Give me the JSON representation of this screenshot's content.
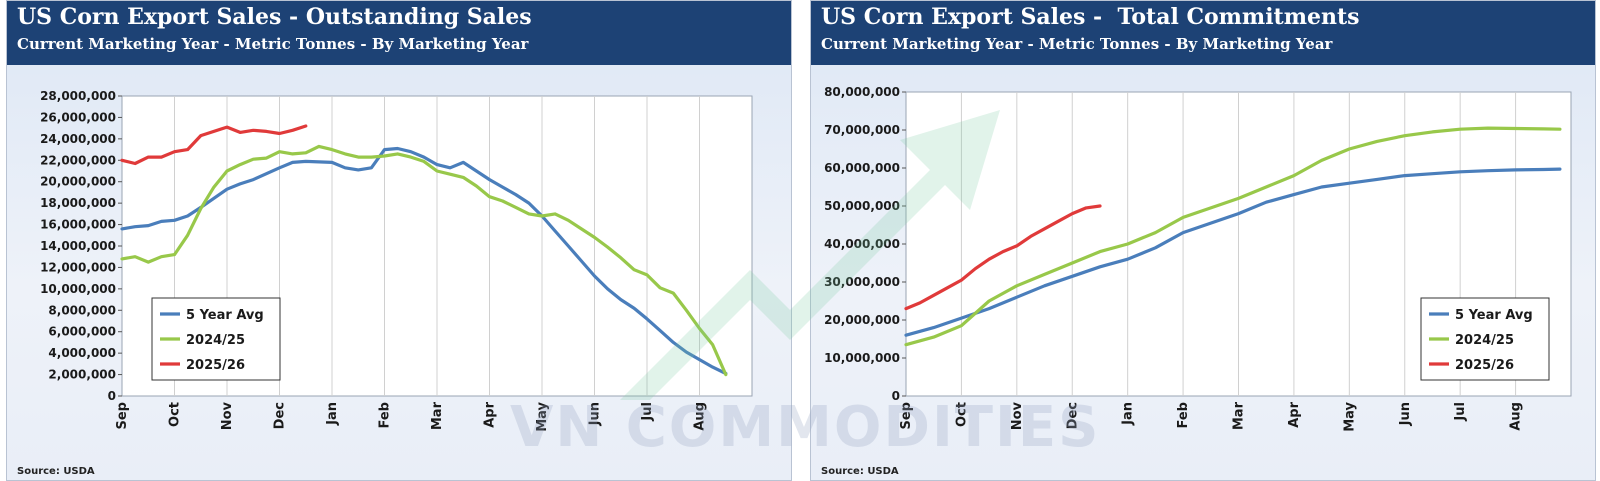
{
  "watermark": {
    "text": "VN COMMODITIES"
  },
  "colors": {
    "avg": "#4a7ebb",
    "y2425": "#98c84a",
    "y2526": "#e03a3a",
    "header": "#1d4275"
  },
  "chart_data": [
    {
      "type": "line",
      "title": "US Corn Export Sales - Outstanding Sales",
      "subtitle": "Current Marketing Year - Metric Tonnes - By Marketing Year",
      "source": "Source: USDA",
      "xlabel": "",
      "ylabel": "",
      "ylim": [
        0,
        28000000
      ],
      "yticks": [
        0,
        2000000,
        4000000,
        6000000,
        8000000,
        10000000,
        12000000,
        14000000,
        16000000,
        18000000,
        20000000,
        22000000,
        24000000,
        26000000,
        28000000
      ],
      "ytick_labels": [
        "0",
        "2,000,000",
        "4,000,000",
        "6,000,000",
        "8,000,000",
        "10,000,000",
        "12,000,000",
        "14,000,000",
        "16,000,000",
        "18,000,000",
        "20,000,000",
        "22,000,000",
        "24,000,000",
        "26,000,000",
        "28,000,000"
      ],
      "xticks": [
        "Sep",
        "Oct",
        "Nov",
        "Dec",
        "Jan",
        "Feb",
        "Mar",
        "Apr",
        "May",
        "Jun",
        "Jul",
        "Aug"
      ],
      "legend": {
        "position": "bottom-left",
        "entries": [
          "5 Year Avg",
          "2024/25",
          "2025/26"
        ]
      },
      "series": [
        {
          "name": "5 Year Avg",
          "color": "#4a7ebb",
          "x": [
            0,
            0.25,
            0.5,
            0.75,
            1,
            1.25,
            1.5,
            2,
            2.25,
            2.5,
            3,
            3.25,
            3.5,
            4,
            4.25,
            4.5,
            4.75,
            5,
            5.25,
            5.5,
            5.75,
            6,
            6.25,
            6.5,
            6.75,
            7,
            7.25,
            7.5,
            7.75,
            8,
            8.25,
            8.5,
            8.75,
            9,
            9.25,
            9.5,
            9.75,
            10,
            10.25,
            10.5,
            10.75,
            11,
            11.25,
            11.5
          ],
          "y": [
            15600000,
            15800000,
            15900000,
            16300000,
            16400000,
            16800000,
            17600000,
            19300000,
            19800000,
            20200000,
            21300000,
            21800000,
            21900000,
            21800000,
            21300000,
            21100000,
            21300000,
            23000000,
            23100000,
            22800000,
            22300000,
            21600000,
            21300000,
            21800000,
            21000000,
            20200000,
            19500000,
            18800000,
            18000000,
            16800000,
            15400000,
            14000000,
            12600000,
            11200000,
            10000000,
            9000000,
            8200000,
            7200000,
            6100000,
            5000000,
            4100000,
            3400000,
            2700000,
            2100000
          ]
        },
        {
          "name": "2024/25",
          "color": "#98c84a",
          "x": [
            0,
            0.25,
            0.5,
            0.75,
            1,
            1.25,
            1.5,
            1.75,
            2,
            2.25,
            2.5,
            2.75,
            3,
            3.25,
            3.5,
            3.75,
            4,
            4.25,
            4.5,
            4.75,
            5,
            5.25,
            5.5,
            5.75,
            6,
            6.25,
            6.5,
            6.75,
            7,
            7.25,
            7.5,
            7.75,
            8,
            8.25,
            8.5,
            8.75,
            9,
            9.25,
            9.5,
            9.75,
            10,
            10.25,
            10.5,
            10.75,
            11,
            11.25,
            11.5
          ],
          "y": [
            12800000,
            13000000,
            12500000,
            13000000,
            13200000,
            15000000,
            17500000,
            19500000,
            21000000,
            21600000,
            22100000,
            22200000,
            22800000,
            22600000,
            22700000,
            23300000,
            23000000,
            22600000,
            22300000,
            22300000,
            22400000,
            22600000,
            22300000,
            21900000,
            21000000,
            20700000,
            20400000,
            19600000,
            18600000,
            18200000,
            17600000,
            17000000,
            16800000,
            17000000,
            16400000,
            15600000,
            14800000,
            13900000,
            12900000,
            11800000,
            11300000,
            10100000,
            9600000,
            8000000,
            6300000,
            4800000,
            2000000
          ]
        },
        {
          "name": "2025/26",
          "color": "#e03a3a",
          "x": [
            0,
            0.25,
            0.5,
            0.75,
            1,
            1.25,
            1.5,
            2,
            2.25,
            2.5,
            2.75,
            3,
            3.25,
            3.5
          ],
          "y": [
            22000000,
            21700000,
            22300000,
            22300000,
            22800000,
            23000000,
            24300000,
            25100000,
            24600000,
            24800000,
            24700000,
            24500000,
            24800000,
            25200000
          ]
        }
      ]
    },
    {
      "type": "line",
      "title": "US Corn Export Sales -  Total Commitments",
      "subtitle": "Current Marketing Year - Metric Tonnes - By Marketing Year",
      "source": "Source: USDA",
      "xlabel": "",
      "ylabel": "",
      "ylim": [
        0,
        80000000
      ],
      "yticks": [
        0,
        10000000,
        20000000,
        30000000,
        40000000,
        50000000,
        60000000,
        70000000,
        80000000
      ],
      "ytick_labels": [
        "0",
        "10,000,000",
        "20,000,000",
        "30,000,000",
        "40,000,000",
        "50,000,000",
        "60,000,000",
        "70,000,000",
        "80,000,000"
      ],
      "xticks": [
        "Sep",
        "Oct",
        "Nov",
        "Dec",
        "Jan",
        "Feb",
        "Mar",
        "Apr",
        "May",
        "Jun",
        "Jul",
        "Aug"
      ],
      "legend": {
        "position": "bottom-right",
        "entries": [
          "5 Year Avg",
          "2024/25",
          "2025/26"
        ]
      },
      "series": [
        {
          "name": "5 Year Avg",
          "color": "#4a7ebb",
          "x": [
            0,
            0.5,
            1,
            1.5,
            2,
            2.5,
            3,
            3.5,
            4,
            4.5,
            5,
            5.5,
            6,
            6.5,
            7,
            7.5,
            8,
            8.5,
            9,
            9.5,
            10,
            10.5,
            11,
            11.5,
            11.8
          ],
          "y": [
            16000000,
            18000000,
            20500000,
            23000000,
            26000000,
            29000000,
            31500000,
            34000000,
            36000000,
            39000000,
            43000000,
            45500000,
            48000000,
            51000000,
            53000000,
            55000000,
            56000000,
            57000000,
            58000000,
            58500000,
            59000000,
            59300000,
            59500000,
            59600000,
            59700000
          ]
        },
        {
          "name": "2024/25",
          "color": "#98c84a",
          "x": [
            0,
            0.5,
            1,
            1.5,
            2,
            2.5,
            3,
            3.5,
            4,
            4.5,
            5,
            5.5,
            6,
            6.5,
            7,
            7.5,
            8,
            8.5,
            9,
            9.5,
            10,
            10.5,
            11,
            11.5,
            11.8
          ],
          "y": [
            13500000,
            15500000,
            18500000,
            25000000,
            29000000,
            32000000,
            35000000,
            38000000,
            40000000,
            43000000,
            47000000,
            49500000,
            52000000,
            55000000,
            58000000,
            62000000,
            65000000,
            67000000,
            68500000,
            69500000,
            70200000,
            70500000,
            70400000,
            70300000,
            70200000
          ]
        },
        {
          "name": "2025/26",
          "color": "#e03a3a",
          "x": [
            0,
            0.25,
            0.5,
            0.75,
            1,
            1.25,
            1.5,
            1.75,
            2,
            2.25,
            2.5,
            2.75,
            3,
            3.25,
            3.5
          ],
          "y": [
            23000000,
            24500000,
            26500000,
            28500000,
            30500000,
            33500000,
            36000000,
            38000000,
            39500000,
            42000000,
            44000000,
            46000000,
            48000000,
            49500000,
            50000000
          ]
        }
      ]
    }
  ]
}
